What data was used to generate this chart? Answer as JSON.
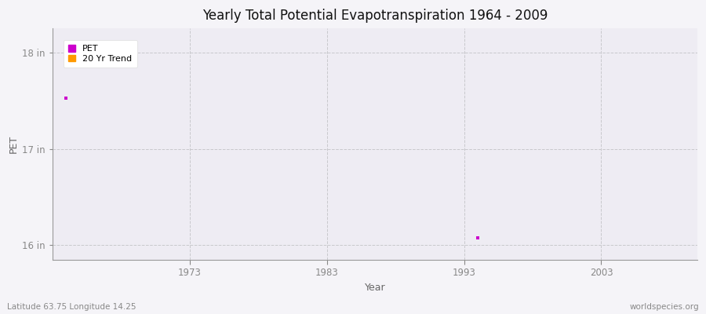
{
  "title": "Yearly Total Potential Evapotranspiration 1964 - 2009",
  "xlabel": "Year",
  "ylabel": "PET",
  "xlim": [
    1963,
    2010
  ],
  "ylim": [
    15.85,
    18.25
  ],
  "yticks": [
    16,
    17,
    18
  ],
  "ytick_labels": [
    "16 in",
    "17 in",
    "18 in"
  ],
  "xticks": [
    1973,
    1983,
    1993,
    2003
  ],
  "pet_color": "#cc00cc",
  "trend_color": "#ff9900",
  "bg_color": "#f2f0f5",
  "plot_bg_color": "#eeecf2",
  "grid_color": "#cccccc",
  "pet_points": [
    [
      1964,
      17.53
    ],
    [
      1994,
      16.08
    ]
  ],
  "legend_labels": [
    "PET",
    "20 Yr Trend"
  ],
  "subtitle_left": "Latitude 63.75 Longitude 14.25",
  "subtitle_right": "worldspecies.org",
  "marker_size": 3.5
}
